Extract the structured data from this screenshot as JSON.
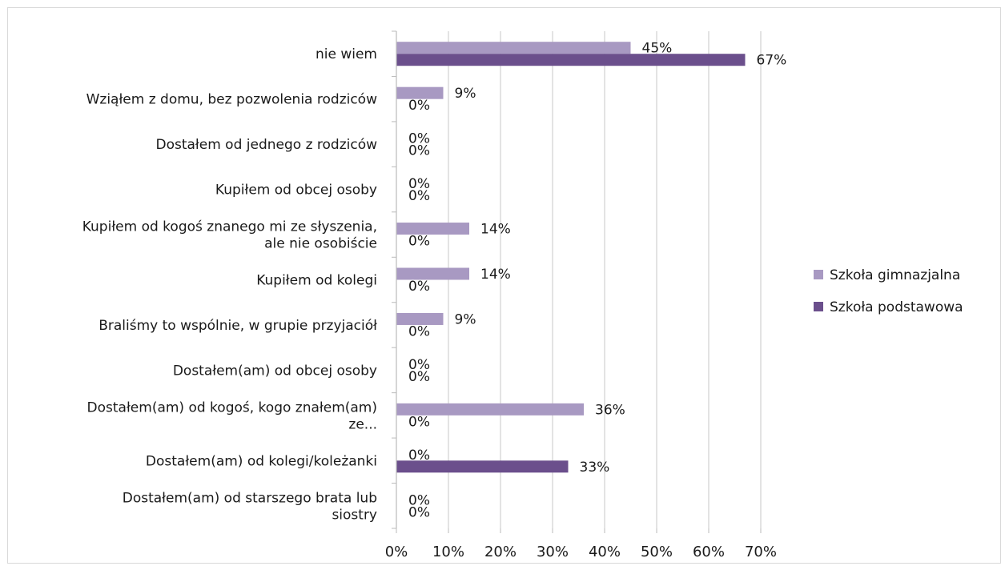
{
  "chart_data": {
    "type": "bar",
    "orientation": "horizontal",
    "categories": [
      [
        "nie wiem"
      ],
      [
        "Wziąłem z domu, bez pozwolenia rodziców"
      ],
      [
        "Dostałem od jednego z rodziców"
      ],
      [
        "Kupiłem od obcej osoby"
      ],
      [
        "Kupiłem od kogoś znanego mi ze słyszenia,",
        "ale nie osobiście"
      ],
      [
        "Kupiłem od kolegi"
      ],
      [
        "Braliśmy to wspólnie, w grupie przyjaciół"
      ],
      [
        "Dostałem(am) od obcej osoby"
      ],
      [
        "Dostałem(am) od kogoś, kogo znałem(am)",
        "ze..."
      ],
      [
        "Dostałem(am) od kolegi/koleżanki"
      ],
      [
        "Dostałem(am) od starszego brata lub",
        "siostry"
      ]
    ],
    "series": [
      {
        "name": "Szkoła gimnazjalna",
        "color": "#a899c2",
        "values": [
          45,
          9,
          0,
          0,
          14,
          14,
          9,
          0,
          36,
          0,
          0
        ],
        "labels": [
          "45%",
          "9%",
          "0%",
          "0%",
          "14%",
          "14%",
          "9%",
          "0%",
          "36%",
          "0%",
          "0%"
        ]
      },
      {
        "name": "Szkoła podstawowa",
        "color": "#6b4f8c",
        "values": [
          67,
          0,
          0,
          0,
          0,
          0,
          0,
          0,
          0,
          33,
          0
        ],
        "labels": [
          "67%",
          "0%",
          "0%",
          "0%",
          "0%",
          "0%",
          "0%",
          "0%",
          "0%",
          "33%",
          "0%"
        ]
      }
    ],
    "xlim": [
      0,
      70
    ],
    "xticks": [
      0,
      10,
      20,
      30,
      40,
      50,
      60,
      70
    ],
    "xtick_labels": [
      "0%",
      "10%",
      "20%",
      "30%",
      "40%",
      "50%",
      "60%",
      "70%"
    ],
    "title": "",
    "xlabel": "",
    "ylabel": "",
    "grid": "vertical",
    "legend_position": "right"
  }
}
